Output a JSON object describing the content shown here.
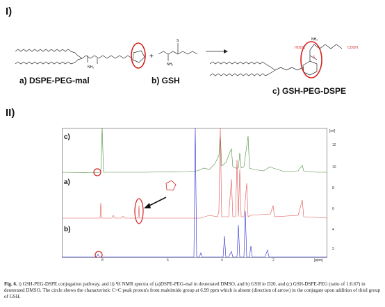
{
  "panels": {
    "scheme_label": "I)",
    "nmr_label": "II)"
  },
  "scheme": {
    "compound_a": "a)  DSPE-PEG-mal",
    "compound_b": "b)  GSH",
    "compound_c": "c) GSH-PEG-DSPE",
    "plus": "+",
    "arrow": "⟶",
    "atoms": {
      "nh2": "NH₂",
      "cooh_left": "HOOC",
      "cooh_right": "COOH",
      "s": "S",
      "n": "N"
    }
  },
  "spectra": {
    "trace_labels": [
      "c)",
      "a)",
      "b)"
    ],
    "y_axis_unit": "[rel]",
    "y_ticks": [
      "12",
      "10",
      "8",
      "6",
      "4",
      "2"
    ],
    "x_axis_unit": "[ppm]",
    "x_ticks": [
      "8",
      "6",
      "4",
      "2"
    ],
    "colors": {
      "c": "#4a8a3c",
      "a": "#e05050",
      "b": "#2a2ad0",
      "circle": "#d62020"
    }
  },
  "caption": {
    "label": "Fig. 6.",
    "text": " i) GSH-PEG-DSPE conjugation pathway, and ii) ¹H NMR spectra of (a)DSPE-PEG-mal in deuterated DMSO, and b) GSH in D20, and (c) GSH-DSPE-PEG (ratio of 1:0.67) in deuterated DMSO. The circle shows the characteristic C=C peak proton's from maleimide group at 6.99 ppm which is absent (direction of arrow) in the conjugate upon addition of thiol group of GSH."
  }
}
